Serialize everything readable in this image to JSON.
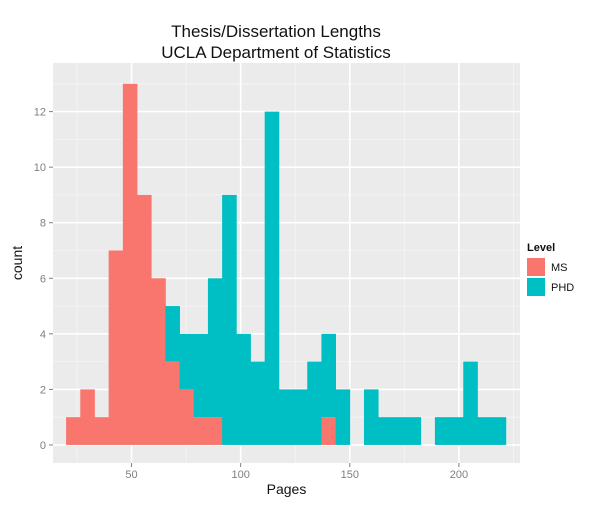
{
  "chart_data": {
    "type": "bar",
    "subtype": "stacked-histogram",
    "title": [
      "Thesis/Dissertation Lengths",
      "UCLA Department of Statistics"
    ],
    "xlabel": "Pages",
    "ylabel": "count",
    "xlim": [
      14,
      228
    ],
    "ylim": [
      -0.65,
      13.75
    ],
    "x_ticks": [
      50,
      100,
      150,
      200
    ],
    "y_ticks": [
      0,
      2,
      4,
      6,
      8,
      10,
      12
    ],
    "bin_width": 6.5,
    "bin_start": 20,
    "grid": true,
    "legend_position": "right",
    "legend_title": "Level",
    "series": [
      {
        "name": "MS",
        "color": "#F8766D",
        "values": [
          1,
          2,
          1,
          7,
          13,
          9,
          6,
          3,
          2,
          1,
          1,
          0,
          0,
          0,
          0,
          0,
          0,
          0,
          1,
          0,
          0,
          0,
          0,
          0,
          0,
          0,
          0,
          0,
          0,
          0,
          0
        ]
      },
      {
        "name": "PHD",
        "color": "#00BFC4",
        "values": [
          0,
          0,
          0,
          0,
          0,
          0,
          0,
          2,
          2,
          3,
          5,
          9,
          4,
          3,
          12,
          2,
          2,
          3,
          3,
          2,
          0,
          2,
          1,
          1,
          1,
          0,
          1,
          1,
          3,
          1,
          1
        ]
      }
    ]
  }
}
